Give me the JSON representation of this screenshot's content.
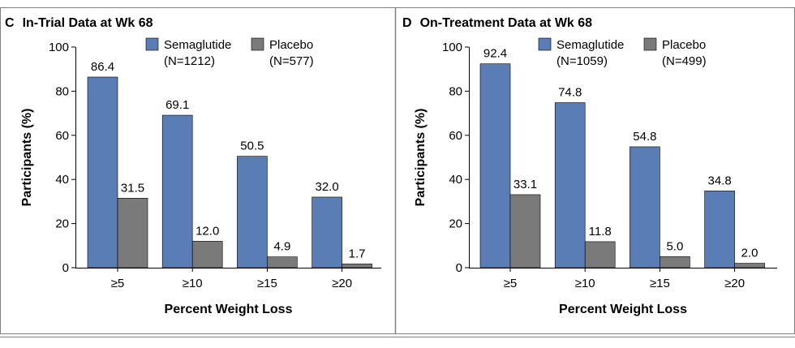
{
  "colors": {
    "semaglutide": "#5b7db5",
    "placebo": "#7a7a7a",
    "frame": "#7f7f7f"
  },
  "chart_data": [
    {
      "type": "bar",
      "letter": "C",
      "title": "In-Trial Data at Wk 68",
      "xlabel": "Percent Weight Loss",
      "ylabel": "Participants (%)",
      "ylim": [
        0,
        100
      ],
      "yticks": [
        "0",
        "20",
        "40",
        "60",
        "80",
        "100"
      ],
      "categories": [
        "≥5",
        "≥10",
        "≥15",
        "≥20"
      ],
      "legend_position": "top-right",
      "series": [
        {
          "name": "Semaglutide",
          "n_label": "(N=1212)",
          "values": [
            86.4,
            69.1,
            50.5,
            32.0
          ],
          "labels": [
            "86.4",
            "69.1",
            "50.5",
            "32.0"
          ]
        },
        {
          "name": "Placebo",
          "n_label": "(N=577)",
          "values": [
            31.5,
            12.0,
            4.9,
            1.7
          ],
          "labels": [
            "31.5",
            "12.0",
            "4.9",
            "1.7"
          ]
        }
      ]
    },
    {
      "type": "bar",
      "letter": "D",
      "title": "On-Treatment Data at Wk 68",
      "xlabel": "Percent Weight Loss",
      "ylabel": "Participants (%)",
      "ylim": [
        0,
        100
      ],
      "yticks": [
        "0",
        "20",
        "40",
        "60",
        "80",
        "100"
      ],
      "categories": [
        "≥5",
        "≥10",
        "≥15",
        "≥20"
      ],
      "legend_position": "top-right",
      "series": [
        {
          "name": "Semaglutide",
          "n_label": "(N=1059)",
          "values": [
            92.4,
            74.8,
            54.8,
            34.8
          ],
          "labels": [
            "92.4",
            "74.8",
            "54.8",
            "34.8"
          ]
        },
        {
          "name": "Placebo",
          "n_label": "(N=499)",
          "values": [
            33.1,
            11.8,
            5.0,
            2.0
          ],
          "labels": [
            "33.1",
            "11.8",
            "5.0",
            "2.0"
          ]
        }
      ]
    }
  ]
}
